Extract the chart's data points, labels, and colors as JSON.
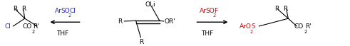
{
  "fig_width": 4.91,
  "fig_height": 0.65,
  "dpi": 100,
  "bg_color": "#ffffff",
  "fs": 6.5,
  "sfs": 4.8,
  "blue": "#2222cc",
  "red": "#cc0000",
  "black": "#000000",
  "texts": {
    "left_R1": [
      0.028,
      0.78,
      "R"
    ],
    "left_R2": [
      0.052,
      0.78,
      "R"
    ],
    "left_Cl": [
      0.005,
      0.38,
      "Cl"
    ],
    "left_CO": [
      0.058,
      0.38,
      "CO"
    ],
    "left_Rp": [
      0.093,
      0.38,
      "R'"
    ],
    "left_2": [
      0.086,
      0.28,
      "2"
    ],
    "arr1_Ar": [
      0.163,
      0.73,
      "Ar"
    ],
    "arr1_SO": [
      0.181,
      0.73,
      "SO"
    ],
    "arr1_2": [
      0.203,
      0.64,
      "2"
    ],
    "arr1_Cl": [
      0.207,
      0.73,
      "Cl"
    ],
    "arr1_THF": [
      0.167,
      0.22,
      "THF"
    ],
    "cen_OLi": [
      0.415,
      0.88,
      "OLi"
    ],
    "cen_Rl": [
      0.338,
      0.5,
      "R"
    ],
    "cen_ORp": [
      0.472,
      0.5,
      "OR'"
    ],
    "cen_Rb": [
      0.4,
      0.05,
      "R"
    ],
    "arr2_Ar": [
      0.578,
      0.73,
      "Ar"
    ],
    "arr2_SO": [
      0.596,
      0.73,
      "SO"
    ],
    "arr2_2": [
      0.618,
      0.64,
      "2"
    ],
    "arr2_F": [
      0.622,
      0.73,
      "F"
    ],
    "arr2_THF": [
      0.582,
      0.22,
      "THF"
    ],
    "right_R1": [
      0.79,
      0.78,
      "R"
    ],
    "right_R2": [
      0.815,
      0.78,
      "R"
    ],
    "right_ArO": [
      0.693,
      0.38,
      "ArO"
    ],
    "right_2": [
      0.724,
      0.28,
      "2"
    ],
    "right_S": [
      0.728,
      0.38,
      "S"
    ],
    "right_CO": [
      0.852,
      0.38,
      "CO"
    ],
    "right_2b": [
      0.882,
      0.28,
      "2"
    ],
    "right_Rp": [
      0.887,
      0.38,
      "R'"
    ]
  }
}
